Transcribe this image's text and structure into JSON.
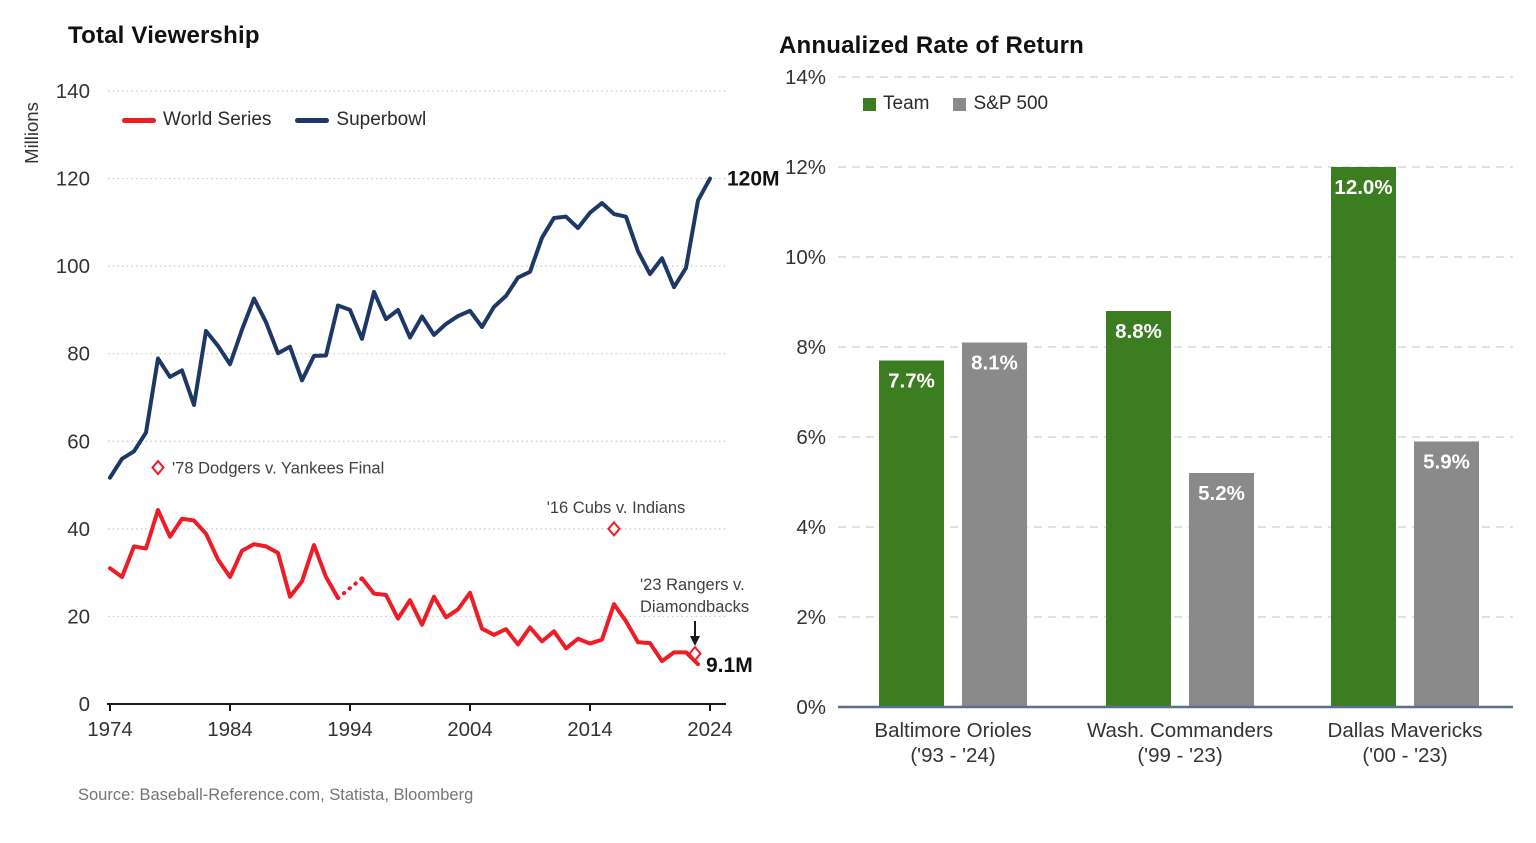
{
  "source_note": "Source: Baseball-Reference.com, Statista, Bloomberg",
  "chart_data": [
    {
      "type": "line",
      "title": "Total Viewership",
      "ylabel": "Millions",
      "xlabel": "",
      "ylim": [
        0,
        140
      ],
      "y_ticks": [
        0,
        20,
        40,
        60,
        80,
        100,
        120,
        140
      ],
      "x_ticks": [
        1974,
        1984,
        1994,
        2004,
        2014,
        2024
      ],
      "grid": "dotted",
      "legend_position": "top-left-inside",
      "series": [
        {
          "name": "World Series",
          "color": "#ee1c25",
          "year_start": 1974,
          "gap_note": "1994 value is null (players' strike, World Series canceled) - bridged with dotted segment",
          "values": [
            31.0,
            29.0,
            36.0,
            35.5,
            44.3,
            38.2,
            42.3,
            41.9,
            38.9,
            33.0,
            29.0,
            35.0,
            36.5,
            36.0,
            34.5,
            24.5,
            28.0,
            36.3,
            29.0,
            24.2,
            null,
            28.7,
            25.2,
            24.9,
            19.5,
            23.7,
            18.1,
            24.5,
            19.8,
            21.6,
            25.4,
            17.2,
            15.8,
            17.1,
            13.6,
            17.5,
            14.3,
            16.6,
            12.7,
            14.9,
            13.8,
            14.7,
            22.8,
            18.9,
            14.1,
            13.9,
            9.8,
            11.8,
            11.8,
            9.1
          ]
        },
        {
          "name": "Superbowl",
          "color": "#1d3866",
          "year_start": 1974,
          "values": [
            51.7,
            56.0,
            57.7,
            62.0,
            78.9,
            74.7,
            76.2,
            68.3,
            85.2,
            81.8,
            77.6,
            85.5,
            92.6,
            87.2,
            80.1,
            81.6,
            73.9,
            79.5,
            79.6,
            91.0,
            90.0,
            83.4,
            94.1,
            87.9,
            90.0,
            83.7,
            88.5,
            84.3,
            86.8,
            88.6,
            89.8,
            86.1,
            90.7,
            93.2,
            97.4,
            98.7,
            106.5,
            111.0,
            111.3,
            108.7,
            112.2,
            114.4,
            111.9,
            111.3,
            103.4,
            98.2,
            101.8,
            95.2,
            99.6,
            115.0,
            120.0
          ]
        }
      ],
      "end_labels": [
        {
          "series": "Superbowl",
          "label": "120M",
          "year": 2024,
          "value": 120
        },
        {
          "series": "World Series",
          "label": "9.1M",
          "year": 2023,
          "value": 9.1
        }
      ],
      "annotations": [
        {
          "id": "a78",
          "label": "'78 Dodgers v. Yankees Final",
          "marker_year": 1978,
          "marker_value": 54,
          "layout": "marker-then-text-right"
        },
        {
          "id": "a16",
          "label": "'16 Cubs v. Indians",
          "marker_year": 2016,
          "marker_value": 40,
          "layout": "text-above-marker"
        },
        {
          "id": "a23",
          "label_lines": [
            "'23 Rangers v.",
            "Diamondbacks"
          ],
          "marker_year": 2023,
          "marker_value": 11.5,
          "layout": "text-arrow-down-to-marker"
        }
      ]
    },
    {
      "type": "bar",
      "title": "Annualized Rate of Return",
      "categories": [
        "Baltimore Orioles ('93 - '24)",
        "Wash. Commanders ('99 - '23)",
        "Dallas Mavericks ('00 - '23)"
      ],
      "category_lines": [
        [
          "Baltimore Orioles",
          "('93 - '24)"
        ],
        [
          "Wash. Commanders",
          "('99 - '23)"
        ],
        [
          "Dallas Mavericks",
          "('00 - '23)"
        ]
      ],
      "series": [
        {
          "name": "Team",
          "color": "#3d7d22",
          "values": [
            7.7,
            8.8,
            12.0
          ]
        },
        {
          "name": "S&P 500",
          "color": "#8a8a8a",
          "values": [
            8.1,
            5.2,
            5.9
          ]
        }
      ],
      "value_labels": [
        [
          "7.7%",
          "8.8%",
          "12.0%"
        ],
        [
          "8.1%",
          "5.2%",
          "5.9%"
        ]
      ],
      "ylim": [
        0,
        14
      ],
      "y_tick_labels": [
        "0%",
        "2%",
        "4%",
        "6%",
        "8%",
        "10%",
        "12%",
        "14%"
      ],
      "grid": "dashed",
      "legend_position": "top-left-inside"
    }
  ]
}
